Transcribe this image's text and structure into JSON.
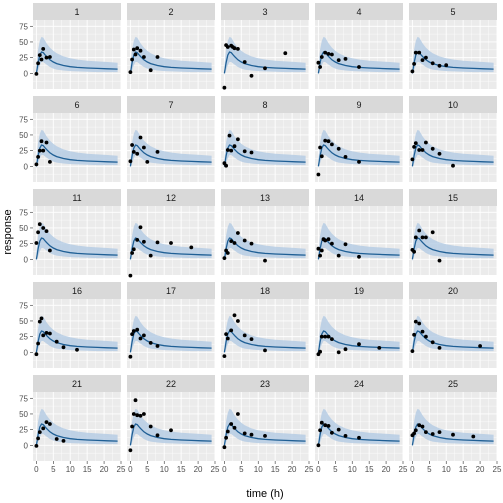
{
  "chart_data": {
    "type": "facet-line-scatter",
    "xlabel": "time (h)",
    "ylabel": "response",
    "xlim": [
      -1,
      25
    ],
    "ylim": [
      -25,
      85
    ],
    "x_ticks": [
      0,
      5,
      10,
      15,
      20,
      25
    ],
    "x_tick_labels": [
      "0",
      "5",
      "10",
      "15",
      "20",
      "25"
    ],
    "y_ticks": [
      0,
      25,
      50,
      75
    ],
    "y_tick_labels": [
      "0",
      "25",
      "50",
      "75"
    ],
    "grid": true,
    "colors": {
      "panel_bg": "#ebebeb",
      "strip_bg": "#d9d9d9",
      "band": "#b6cde4",
      "line": "#1f5f95",
      "point": "#000000"
    },
    "prediction": {
      "time": [
        0,
        0.5,
        1,
        1.5,
        2,
        2.5,
        3,
        4,
        5,
        6,
        8,
        10,
        12,
        15,
        18,
        21,
        24
      ],
      "median": [
        0,
        17,
        29,
        34,
        33,
        30,
        27,
        21.5,
        18,
        15.5,
        12.5,
        10.5,
        9.5,
        8.5,
        7.8,
        7.2,
        6.8
      ],
      "lower": [
        -3,
        5,
        13,
        18,
        18,
        16,
        14,
        10,
        7.5,
        6,
        4.5,
        3.5,
        3,
        2.5,
        2,
        2,
        2
      ],
      "upper": [
        12,
        38,
        52,
        58,
        57,
        53,
        48,
        41,
        36,
        32,
        27,
        24,
        22,
        20,
        19,
        18,
        17
      ]
    },
    "panels": [
      {
        "id": "1",
        "points": [
          [
            0,
            -1
          ],
          [
            0.5,
            16
          ],
          [
            1,
            29
          ],
          [
            1.5,
            22
          ],
          [
            2,
            39
          ],
          [
            3,
            25
          ],
          [
            4,
            26
          ]
        ]
      },
      {
        "id": "2",
        "points": [
          [
            0,
            2
          ],
          [
            0.5,
            22
          ],
          [
            1,
            38
          ],
          [
            1.5,
            30
          ],
          [
            2,
            40
          ],
          [
            3,
            36
          ],
          [
            4,
            26
          ],
          [
            6,
            5
          ],
          [
            8,
            26
          ]
        ]
      },
      {
        "id": "3",
        "points": [
          [
            0,
            -23
          ],
          [
            0.5,
            45
          ],
          [
            1,
            42
          ],
          [
            2,
            44
          ],
          [
            2.5,
            42
          ],
          [
            3,
            40
          ],
          [
            4,
            39
          ],
          [
            6,
            18
          ],
          [
            8,
            -4
          ],
          [
            12,
            8
          ],
          [
            18,
            32
          ]
        ]
      },
      {
        "id": "4",
        "points": [
          [
            0,
            17
          ],
          [
            0.5,
            10
          ],
          [
            1,
            26
          ],
          [
            2,
            33
          ],
          [
            3,
            31
          ],
          [
            4,
            30
          ],
          [
            6,
            21
          ],
          [
            8,
            23
          ],
          [
            12,
            10
          ]
        ]
      },
      {
        "id": "5",
        "points": [
          [
            0,
            3
          ],
          [
            0.5,
            15
          ],
          [
            1,
            33
          ],
          [
            2,
            33
          ],
          [
            3,
            21
          ],
          [
            4,
            25
          ],
          [
            6,
            16
          ],
          [
            8,
            12
          ],
          [
            10,
            13
          ]
        ]
      },
      {
        "id": "6",
        "points": [
          [
            0,
            3
          ],
          [
            0.5,
            15
          ],
          [
            1,
            25
          ],
          [
            1.5,
            40
          ],
          [
            2,
            25
          ],
          [
            3,
            38
          ],
          [
            4,
            7
          ]
        ]
      },
      {
        "id": "7",
        "points": [
          [
            0,
            8
          ],
          [
            0.5,
            34
          ],
          [
            1,
            23
          ],
          [
            2,
            20
          ],
          [
            3,
            46
          ],
          [
            4,
            30
          ],
          [
            5,
            7
          ],
          [
            8,
            23
          ]
        ]
      },
      {
        "id": "8",
        "points": [
          [
            0,
            5
          ],
          [
            0.5,
            1
          ],
          [
            1,
            26
          ],
          [
            1.5,
            49
          ],
          [
            2,
            25
          ],
          [
            3,
            32
          ],
          [
            4,
            43
          ],
          [
            6,
            24
          ],
          [
            8,
            22
          ]
        ]
      },
      {
        "id": "9",
        "points": [
          [
            0,
            -13
          ],
          [
            0.5,
            30
          ],
          [
            1,
            16
          ],
          [
            2,
            41
          ],
          [
            3,
            40
          ],
          [
            4,
            35
          ],
          [
            6,
            28
          ],
          [
            8,
            15
          ],
          [
            12,
            7
          ]
        ]
      },
      {
        "id": "10",
        "points": [
          [
            0,
            11
          ],
          [
            0.5,
            31
          ],
          [
            1,
            37
          ],
          [
            2,
            26
          ],
          [
            3,
            26
          ],
          [
            4,
            38
          ],
          [
            6,
            28
          ],
          [
            8,
            20
          ],
          [
            12,
            1
          ]
        ]
      },
      {
        "id": "11",
        "points": [
          [
            0,
            26
          ],
          [
            0.5,
            43
          ],
          [
            1,
            56
          ],
          [
            2,
            50
          ],
          [
            3,
            45
          ],
          [
            4,
            14
          ]
        ]
      },
      {
        "id": "12",
        "points": [
          [
            0,
            -26
          ],
          [
            0.5,
            10
          ],
          [
            1,
            16
          ],
          [
            2,
            31
          ],
          [
            3,
            51
          ],
          [
            4,
            28
          ],
          [
            6,
            6
          ],
          [
            8,
            27
          ],
          [
            12,
            26
          ],
          [
            18,
            19
          ]
        ]
      },
      {
        "id": "13",
        "points": [
          [
            0,
            2
          ],
          [
            0.5,
            14
          ],
          [
            1,
            10
          ],
          [
            2,
            29
          ],
          [
            3,
            26
          ],
          [
            4,
            42
          ],
          [
            6,
            30
          ],
          [
            8,
            25
          ],
          [
            12,
            -2
          ]
        ]
      },
      {
        "id": "14",
        "points": [
          [
            0,
            17
          ],
          [
            0.5,
            6
          ],
          [
            1,
            14
          ],
          [
            1.5,
            32
          ],
          [
            2,
            30
          ],
          [
            3,
            32
          ],
          [
            4,
            25
          ],
          [
            6,
            6
          ],
          [
            8,
            24
          ],
          [
            12,
            4
          ]
        ]
      },
      {
        "id": "15",
        "points": [
          [
            0,
            15
          ],
          [
            0.5,
            12
          ],
          [
            1,
            35
          ],
          [
            2,
            46
          ],
          [
            3,
            35
          ],
          [
            4,
            35
          ],
          [
            6,
            43
          ],
          [
            8,
            -2
          ]
        ]
      },
      {
        "id": "16",
        "points": [
          [
            0,
            -3
          ],
          [
            0.5,
            14
          ],
          [
            1,
            49
          ],
          [
            1.5,
            54
          ],
          [
            2,
            27
          ],
          [
            3,
            31
          ],
          [
            4,
            30
          ],
          [
            6,
            17
          ],
          [
            8,
            8
          ],
          [
            12,
            4
          ]
        ]
      },
      {
        "id": "17",
        "points": [
          [
            0,
            -7
          ],
          [
            0.5,
            29
          ],
          [
            1,
            34
          ],
          [
            2,
            36
          ],
          [
            3,
            22
          ],
          [
            4,
            27
          ],
          [
            6,
            15
          ],
          [
            8,
            10
          ]
        ]
      },
      {
        "id": "18",
        "points": [
          [
            0,
            -6
          ],
          [
            0.5,
            29
          ],
          [
            1,
            22
          ],
          [
            2,
            35
          ],
          [
            3,
            59
          ],
          [
            4,
            50
          ],
          [
            6,
            27
          ],
          [
            8,
            21
          ],
          [
            12,
            3
          ]
        ]
      },
      {
        "id": "19",
        "points": [
          [
            0,
            -3
          ],
          [
            0.5,
            1
          ],
          [
            1,
            25
          ],
          [
            2,
            25
          ],
          [
            3,
            25
          ],
          [
            4,
            21
          ],
          [
            6,
            0
          ],
          [
            8,
            5
          ],
          [
            12,
            13
          ],
          [
            18,
            7
          ]
        ]
      },
      {
        "id": "20",
        "points": [
          [
            0,
            2
          ],
          [
            0.5,
            28
          ],
          [
            1,
            49
          ],
          [
            2,
            46
          ],
          [
            3,
            33
          ],
          [
            4,
            25
          ],
          [
            6,
            16
          ],
          [
            8,
            7
          ],
          [
            20,
            10
          ]
        ]
      },
      {
        "id": "21",
        "points": [
          [
            0,
            -1
          ],
          [
            0.5,
            11
          ],
          [
            1,
            21
          ],
          [
            2,
            27
          ],
          [
            3,
            37
          ],
          [
            4,
            34
          ],
          [
            6,
            10
          ],
          [
            8,
            7
          ]
        ]
      },
      {
        "id": "22",
        "points": [
          [
            0,
            -8
          ],
          [
            0.5,
            30
          ],
          [
            1,
            50
          ],
          [
            1.5,
            72
          ],
          [
            2,
            48
          ],
          [
            3,
            47
          ],
          [
            4,
            50
          ],
          [
            6,
            30
          ],
          [
            8,
            16
          ],
          [
            12,
            24
          ]
        ]
      },
      {
        "id": "23",
        "points": [
          [
            0,
            -3
          ],
          [
            0.5,
            12
          ],
          [
            1,
            22
          ],
          [
            2,
            34
          ],
          [
            3,
            28
          ],
          [
            4,
            50
          ],
          [
            6,
            19
          ],
          [
            8,
            17
          ],
          [
            12,
            15
          ]
        ]
      },
      {
        "id": "24",
        "points": [
          [
            0,
            0
          ],
          [
            0.5,
            24
          ],
          [
            1,
            36
          ],
          [
            2,
            32
          ],
          [
            3,
            31
          ],
          [
            4,
            20
          ],
          [
            6,
            25
          ],
          [
            8,
            15
          ],
          [
            12,
            12
          ]
        ]
      },
      {
        "id": "25",
        "points": [
          [
            0,
            16
          ],
          [
            0.5,
            19
          ],
          [
            1,
            24
          ],
          [
            2,
            32
          ],
          [
            3,
            30
          ],
          [
            4,
            21
          ],
          [
            6,
            18
          ],
          [
            8,
            21
          ],
          [
            12,
            17
          ],
          [
            18,
            14
          ]
        ]
      }
    ]
  }
}
